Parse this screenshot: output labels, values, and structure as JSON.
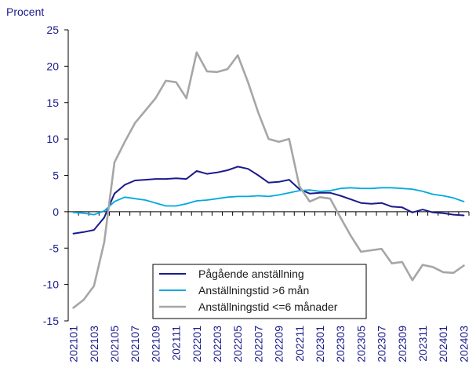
{
  "chart_data": {
    "type": "line",
    "ylabel": "Procent",
    "ylim": [
      -15,
      25
    ],
    "yticks": [
      25,
      20,
      15,
      10,
      5,
      0,
      -5,
      -10,
      -15
    ],
    "grid": "horizontal",
    "legend_position": "bottom-center",
    "x": [
      "202101",
      "202102",
      "202103",
      "202104",
      "202105",
      "202106",
      "202107",
      "202108",
      "202109",
      "202110",
      "202111",
      "202112",
      "202201",
      "202202",
      "202203",
      "202204",
      "202205",
      "202206",
      "202207",
      "202208",
      "202209",
      "202210",
      "202211",
      "202212",
      "202301",
      "202302",
      "202303",
      "202304",
      "202305",
      "202306",
      "202307",
      "202308",
      "202309",
      "202310",
      "202311",
      "202312",
      "202401",
      "202402",
      "202403"
    ],
    "x_tick_labels": [
      "202101",
      "202103",
      "202105",
      "202107",
      "202109",
      "202111",
      "202201",
      "202203",
      "202205",
      "202207",
      "202209",
      "202211",
      "202301",
      "202303",
      "202305",
      "202307",
      "202309",
      "202311",
      "202401",
      "202403"
    ],
    "series": [
      {
        "name": "Pågående anställning",
        "color": "#1a1a8c",
        "values": [
          -3.0,
          -2.8,
          -2.5,
          -0.8,
          2.5,
          3.7,
          4.3,
          4.4,
          4.5,
          4.5,
          4.6,
          4.5,
          5.6,
          5.2,
          5.4,
          5.7,
          6.2,
          5.9,
          5.0,
          4.0,
          4.1,
          4.4,
          3.1,
          2.5,
          2.6,
          2.6,
          2.2,
          1.7,
          1.2,
          1.1,
          1.2,
          0.7,
          0.6,
          -0.1,
          0.3,
          -0.1,
          -0.2,
          -0.4,
          -0.5
        ]
      },
      {
        "name": "Anställningstid >6 mån",
        "color": "#00a9e0",
        "values": [
          -0.1,
          -0.2,
          -0.4,
          0.1,
          1.4,
          2.0,
          1.8,
          1.6,
          1.2,
          0.8,
          0.8,
          1.1,
          1.5,
          1.6,
          1.8,
          2.0,
          2.1,
          2.1,
          2.2,
          2.1,
          2.3,
          2.6,
          2.9,
          3.0,
          2.8,
          2.9,
          3.2,
          3.3,
          3.2,
          3.2,
          3.3,
          3.3,
          3.2,
          3.1,
          2.8,
          2.4,
          2.2,
          1.9,
          1.4
        ]
      },
      {
        "name": "Anställningstid <=6 månader",
        "color": "#a6a6a6",
        "values": [
          -13.2,
          -12.1,
          -10.2,
          -4.2,
          6.8,
          9.6,
          12.2,
          13.9,
          15.6,
          18.0,
          17.8,
          15.6,
          21.9,
          19.3,
          19.2,
          19.6,
          21.5,
          17.8,
          13.6,
          10.0,
          9.6,
          10.0,
          3.5,
          1.4,
          2.0,
          1.8,
          -0.8,
          -3.3,
          -5.5,
          -5.3,
          -5.1,
          -7.1,
          -6.9,
          -9.4,
          -7.3,
          -7.6,
          -8.3,
          -8.4,
          -7.4
        ]
      }
    ]
  }
}
